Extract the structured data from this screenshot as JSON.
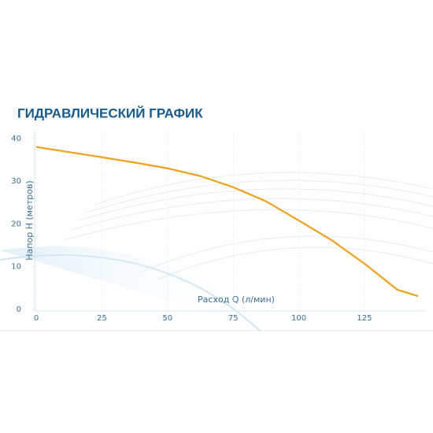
{
  "chart_data": {
    "type": "line",
    "title": "ГИДРАВЛИЧЕСКИЙ ГРАФИК",
    "x_label": "Расход Q (л/мин)",
    "y_label": "Напор H (метров)",
    "x": [
      0,
      25,
      40,
      50,
      62.5,
      75,
      87.5,
      100,
      112.5,
      125,
      137.5,
      145.4
    ],
    "series": [
      {
        "name": "H",
        "color": "#eda21f",
        "values": [
          38.0,
          35.6,
          34.1,
          33.0,
          31.2,
          28.6,
          25.3,
          20.8,
          16.2,
          10.7,
          4.6,
          3.1
        ]
      }
    ],
    "xlim": [
      0,
      148
    ],
    "ylim": [
      0,
      42
    ],
    "xticks": [
      0,
      25,
      50,
      75,
      100,
      125
    ],
    "yticks": [
      0,
      10,
      20,
      30,
      40
    ],
    "grid": true
  }
}
